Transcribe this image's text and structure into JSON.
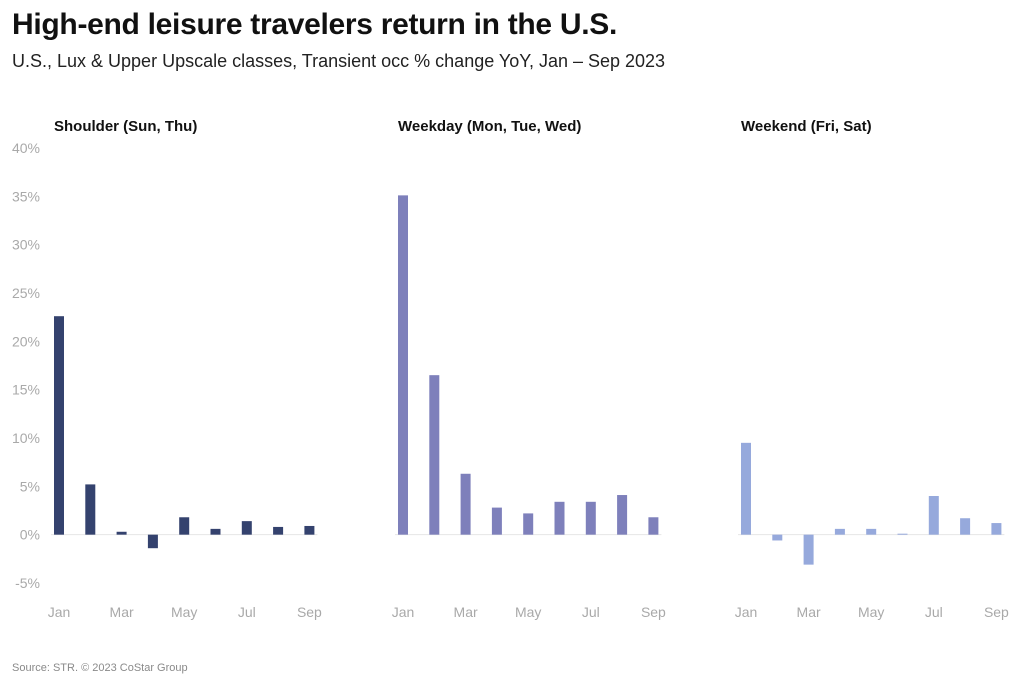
{
  "header": {
    "title": "High-end leisure travelers return in the U.S.",
    "subtitle": "U.S., Lux & Upper Upscale classes, Transient occ % change YoY, Jan – Sep 2023"
  },
  "footer": {
    "source": "Source: STR. © 2023 CoStar Group"
  },
  "chart_data": {
    "type": "bar",
    "title": "High-end leisure travelers return in the U.S.",
    "subtitle": "U.S., Lux & Upper Upscale classes, Transient occ % change YoY, Jan – Sep 2023",
    "ylabel": "",
    "xlabel": "",
    "ylim": [
      -5,
      40
    ],
    "yticks": [
      40,
      35,
      30,
      25,
      20,
      15,
      10,
      5,
      0,
      -5
    ],
    "ytick_labels": [
      "40%",
      "35%",
      "30%",
      "25%",
      "20%",
      "15%",
      "10%",
      "5%",
      "0%",
      "-5%"
    ],
    "categories": [
      "Jan",
      "Feb",
      "Mar",
      "Apr",
      "May",
      "Jun",
      "Jul",
      "Aug",
      "Sep"
    ],
    "xtick_labels": [
      "Jan",
      "Mar",
      "May",
      "Jul",
      "Sep"
    ],
    "grid": false,
    "series": [
      {
        "name": "Shoulder (Sun, Thu)",
        "color": "#34426e",
        "values": [
          22.6,
          5.2,
          0.3,
          -1.4,
          1.8,
          0.6,
          1.4,
          0.8,
          0.9
        ]
      },
      {
        "name": "Weekday (Mon, Tue, Wed)",
        "color": "#7e80bb",
        "values": [
          35.1,
          16.5,
          6.3,
          2.8,
          2.2,
          3.4,
          3.4,
          4.1,
          1.8
        ]
      },
      {
        "name": "Weekend (Fri, Sat)",
        "color": "#96a9dc",
        "values": [
          9.5,
          -0.6,
          -3.1,
          0.6,
          0.6,
          0.1,
          4.0,
          1.7,
          1.2
        ]
      }
    ]
  }
}
